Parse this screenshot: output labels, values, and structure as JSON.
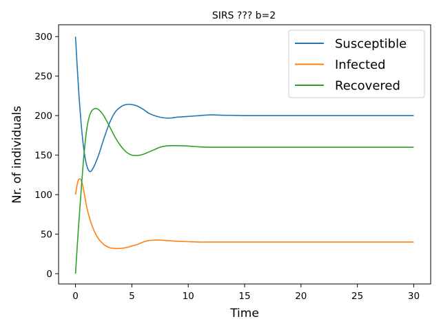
{
  "chart_data": {
    "type": "line",
    "title": "SIRS ??? b=2",
    "xlabel": "Time",
    "ylabel": "Nr. of individuals",
    "xlim": [
      -1.5,
      31.5
    ],
    "ylim": [
      -13,
      315
    ],
    "xticks": [
      0,
      5,
      10,
      15,
      20,
      25,
      30
    ],
    "yticks": [
      0,
      50,
      100,
      150,
      200,
      250,
      300
    ],
    "grid": false,
    "legend": "top-right",
    "series": [
      {
        "name": "Susceptible",
        "color": "#1f77b4",
        "x": [
          0,
          0.3,
          0.6,
          0.9,
          1.2,
          1.5,
          2,
          2.5,
          3,
          3.5,
          4,
          4.5,
          5,
          5.5,
          6,
          6.5,
          7,
          7.5,
          8,
          8.5,
          9,
          10,
          11,
          12,
          13,
          14,
          15,
          17,
          20,
          25,
          30
        ],
        "values": [
          300,
          228,
          175,
          143,
          130,
          132,
          148,
          170,
          190,
          204,
          211,
          214,
          214,
          212,
          208,
          203,
          200,
          198,
          197,
          197,
          198,
          199,
          200,
          201,
          200.5,
          200.3,
          200,
          200,
          200,
          200,
          200
        ]
      },
      {
        "name": "Infected",
        "color": "#ff7f0e",
        "x": [
          0,
          0.2,
          0.4,
          0.6,
          0.8,
          1,
          1.3,
          1.6,
          2,
          2.5,
          3,
          3.5,
          4,
          4.5,
          5,
          5.5,
          6,
          6.5,
          7,
          7.5,
          8,
          8.5,
          9,
          10,
          11,
          12,
          14,
          17,
          20,
          25,
          30
        ],
        "values": [
          100,
          116,
          120,
          114,
          100,
          84,
          68,
          56,
          45,
          37,
          33,
          32,
          32,
          33,
          35,
          37,
          40,
          42,
          42.5,
          42.5,
          42,
          41.5,
          41,
          40.5,
          40,
          40,
          40,
          40,
          40,
          40,
          40
        ]
      },
      {
        "name": "Recovered",
        "color": "#2ca02c",
        "x": [
          0,
          0.25,
          0.5,
          0.75,
          1,
          1.25,
          1.5,
          1.8,
          2.1,
          2.5,
          3,
          3.5,
          4,
          4.5,
          5,
          5.5,
          6,
          6.5,
          7,
          7.5,
          8,
          8.5,
          9,
          10,
          11,
          12,
          14,
          17,
          20,
          25,
          30
        ],
        "values": [
          0,
          55,
          105,
          150,
          183,
          200,
          207,
          209,
          207,
          200,
          187,
          173,
          162,
          154,
          150,
          149.5,
          151,
          154,
          157,
          160,
          161.5,
          162,
          162,
          161.5,
          160.5,
          160,
          160,
          160,
          160,
          160,
          160
        ]
      }
    ]
  }
}
